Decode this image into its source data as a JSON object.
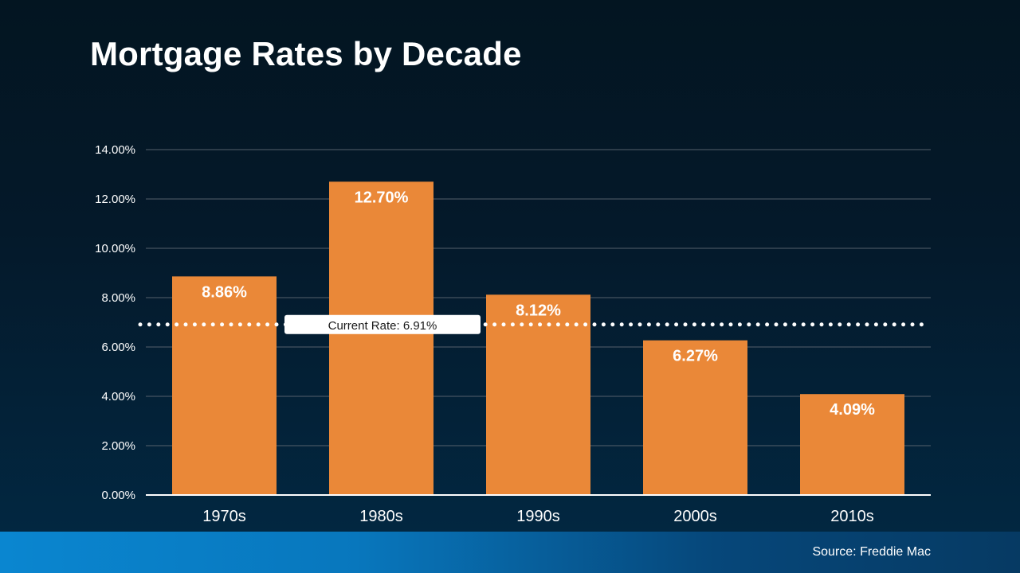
{
  "chart_data": {
    "type": "bar",
    "title": "Mortgage Rates by Decade",
    "categories": [
      "1970s",
      "1980s",
      "1990s",
      "2000s",
      "2010s"
    ],
    "values": [
      8.86,
      12.7,
      8.12,
      6.27,
      4.09
    ],
    "data_labels": [
      "8.86%",
      "12.70%",
      "8.12%",
      "6.27%",
      "4.09%"
    ],
    "y_ticks": [
      0,
      2,
      4,
      6,
      8,
      10,
      12,
      14
    ],
    "y_tick_labels": [
      "0.00%",
      "2.00%",
      "4.00%",
      "6.00%",
      "8.00%",
      "10.00%",
      "12.00%",
      "14.00%"
    ],
    "ylim": [
      0,
      14
    ],
    "xlabel": "",
    "ylabel": "",
    "grid": true,
    "reference_line": {
      "value": 6.91,
      "label": "Current Rate: 6.91%",
      "style": "dotted"
    },
    "colors": {
      "bar": "#ea8838",
      "grid": "#55606b",
      "axis": "#ffffff",
      "text": "#ffffff"
    }
  },
  "footer": {
    "source": "Source: Freddie Mac"
  }
}
